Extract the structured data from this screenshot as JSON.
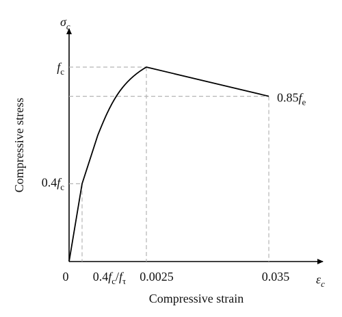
{
  "chart_data": {
    "type": "line",
    "xlabel": "Compressive strain",
    "ylabel": "Compressive stress",
    "x_axis_symbol": {
      "base": "ε",
      "sub": "c"
    },
    "y_axis_symbol": {
      "base": "σ",
      "sub": "c"
    },
    "x_ticks": [
      {
        "key": "origin",
        "parts": [
          {
            "t": "0"
          }
        ]
      },
      {
        "key": "point_04",
        "parts": [
          {
            "t": "0.4"
          },
          {
            "t": "f",
            "i": true
          },
          {
            "t": "c",
            "sub": true
          },
          {
            "t": "/"
          },
          {
            "t": "f",
            "i": true
          },
          {
            "t": "τ",
            "sub": true
          }
        ]
      },
      {
        "key": "peak",
        "parts": [
          {
            "t": "0.0025"
          }
        ]
      },
      {
        "key": "ultimate",
        "parts": [
          {
            "t": "0.035"
          }
        ]
      }
    ],
    "y_ticks": [
      {
        "key": "point_04",
        "parts": [
          {
            "t": "0.4"
          },
          {
            "t": "f",
            "i": true
          },
          {
            "t": "c",
            "sub": true
          }
        ]
      },
      {
        "key": "peak",
        "parts": [
          {
            "t": "f",
            "i": true
          },
          {
            "t": "c",
            "sub": true
          }
        ]
      }
    ],
    "end_annotation": {
      "parts": [
        {
          "t": "0.85"
        },
        {
          "t": "f",
          "i": true
        },
        {
          "t": "e",
          "sub": true
        }
      ]
    },
    "series": [
      {
        "points": [
          {
            "x": "0",
            "y": 0
          },
          {
            "x": "0.4fc/fτ",
            "y": 0.4
          },
          {
            "x": "kink",
            "y": 0.65
          },
          {
            "x": "0.0025",
            "y": 1.0
          },
          {
            "x": "0.035",
            "y": 0.85
          }
        ]
      }
    ],
    "notes_geometry_free": true,
    "grid": false,
    "legend": "none"
  }
}
